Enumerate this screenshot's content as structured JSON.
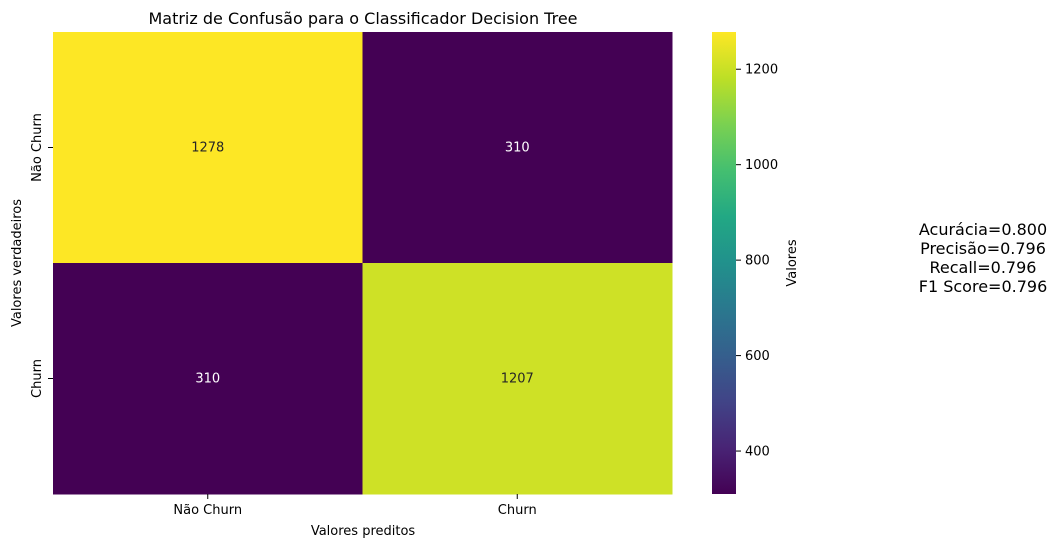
{
  "chart_data": {
    "type": "heatmap",
    "title": "Matriz de Confusão para o Classificador Decision Tree",
    "xlabel": "Valores preditos",
    "ylabel": "Valores verdadeiros",
    "x_categories": [
      "Não Churn",
      "Churn"
    ],
    "y_categories": [
      "Não Churn",
      "Churn"
    ],
    "matrix": [
      [
        1278,
        310
      ],
      [
        310,
        1207
      ]
    ],
    "colormap": "viridis",
    "colorbar": {
      "label": "Valores",
      "range": [
        310,
        1278
      ],
      "ticks": [
        400,
        600,
        800,
        1000,
        1200
      ]
    },
    "colors": {
      "low": "#440154",
      "high": "#fde725"
    }
  },
  "metrics": {
    "accuracy": "Acurácia=0.800",
    "precision": "Precisão=0.796",
    "recall": "Recall=0.796",
    "f1": "F1 Score=0.796"
  }
}
